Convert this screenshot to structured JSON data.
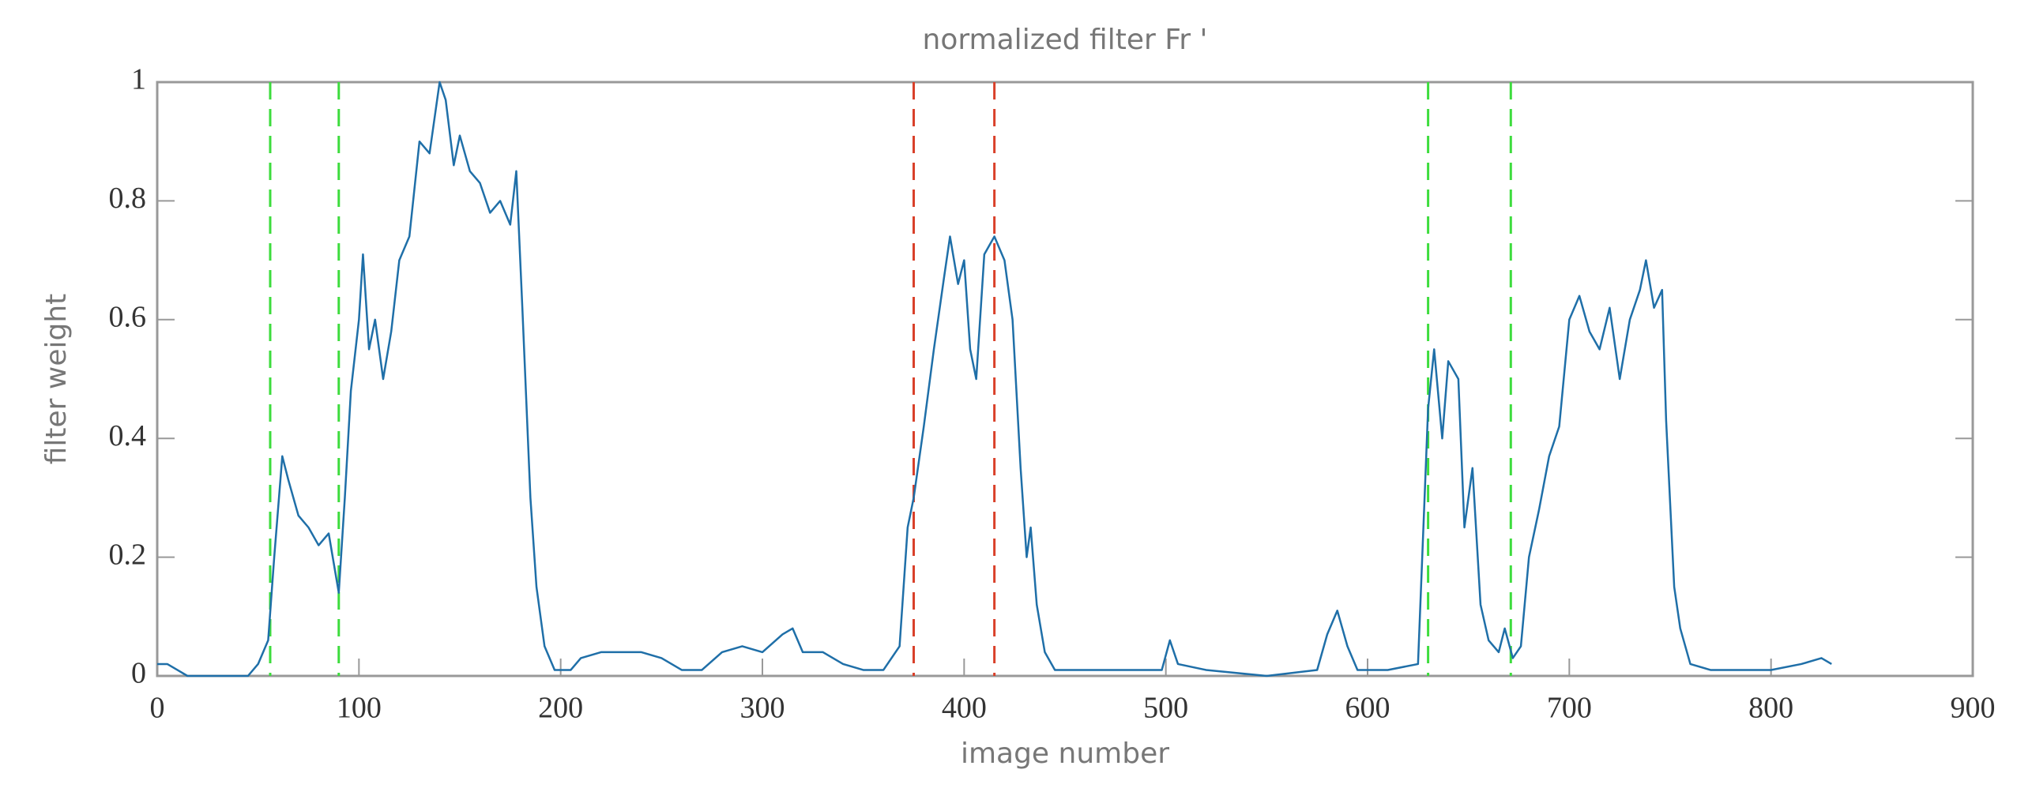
{
  "chart_data": {
    "type": "line",
    "title": "normalized filter Fr '",
    "xlabel": "image number",
    "ylabel": "filter weight",
    "xlim": [
      0,
      900
    ],
    "xticks": [
      0,
      100,
      200,
      300,
      400,
      500,
      600,
      700,
      800,
      900
    ],
    "ylim": [
      0,
      1
    ],
    "yticks": [
      0,
      0.2,
      0.4,
      0.6,
      0.8,
      1
    ],
    "grid": false,
    "vlines": [
      {
        "x": 56,
        "color": "#3ddc3d"
      },
      {
        "x": 90,
        "color": "#3ddc3d"
      },
      {
        "x": 375,
        "color": "#d9402a"
      },
      {
        "x": 415,
        "color": "#d9402a"
      },
      {
        "x": 630,
        "color": "#3ddc3d"
      },
      {
        "x": 671,
        "color": "#3ddc3d"
      }
    ],
    "series": [
      {
        "color": "#1f6fa8",
        "x": [
          0,
          5,
          10,
          15,
          20,
          45,
          50,
          55,
          58,
          62,
          65,
          70,
          75,
          80,
          85,
          88,
          90,
          93,
          96,
          100,
          102,
          105,
          108,
          112,
          116,
          120,
          125,
          130,
          135,
          140,
          143,
          147,
          150,
          155,
          160,
          165,
          170,
          175,
          178,
          181,
          185,
          188,
          192,
          197,
          205,
          210,
          220,
          230,
          240,
          250,
          260,
          270,
          280,
          290,
          300,
          310,
          315,
          320,
          330,
          340,
          350,
          360,
          368,
          372,
          375,
          380,
          385,
          390,
          393,
          397,
          400,
          403,
          406,
          410,
          415,
          420,
          424,
          428,
          431,
          433,
          436,
          440,
          445,
          455,
          470,
          490,
          498,
          502,
          506,
          520,
          550,
          575,
          580,
          585,
          590,
          595,
          610,
          625,
          630,
          633,
          637,
          640,
          645,
          648,
          652,
          656,
          660,
          665,
          668,
          672,
          676,
          680,
          685,
          690,
          695,
          700,
          705,
          710,
          715,
          720,
          725,
          730,
          735,
          738,
          742,
          746,
          748,
          752,
          755,
          760,
          770,
          780,
          800,
          815,
          825,
          830
        ],
        "values": [
          0.02,
          0.02,
          0.01,
          0,
          0,
          0,
          0.02,
          0.06,
          0.2,
          0.37,
          0.33,
          0.27,
          0.25,
          0.22,
          0.24,
          0.18,
          0.14,
          0.3,
          0.48,
          0.6,
          0.71,
          0.55,
          0.6,
          0.5,
          0.58,
          0.7,
          0.74,
          0.9,
          0.88,
          1,
          0.97,
          0.86,
          0.91,
          0.85,
          0.83,
          0.78,
          0.8,
          0.76,
          0.85,
          0.62,
          0.3,
          0.15,
          0.05,
          0.01,
          0.01,
          0.03,
          0.04,
          0.04,
          0.04,
          0.03,
          0.01,
          0.01,
          0.04,
          0.05,
          0.04,
          0.07,
          0.08,
          0.04,
          0.04,
          0.02,
          0.01,
          0.01,
          0.05,
          0.25,
          0.3,
          0.42,
          0.55,
          0.67,
          0.74,
          0.66,
          0.7,
          0.55,
          0.5,
          0.71,
          0.74,
          0.7,
          0.6,
          0.35,
          0.2,
          0.25,
          0.12,
          0.04,
          0.01,
          0.01,
          0.01,
          0.01,
          0.01,
          0.06,
          0.02,
          0.01,
          0,
          0.01,
          0.07,
          0.11,
          0.05,
          0.01,
          0.01,
          0.02,
          0.45,
          0.55,
          0.4,
          0.53,
          0.5,
          0.25,
          0.35,
          0.12,
          0.06,
          0.04,
          0.08,
          0.03,
          0.05,
          0.2,
          0.28,
          0.37,
          0.42,
          0.6,
          0.64,
          0.58,
          0.55,
          0.62,
          0.5,
          0.6,
          0.65,
          0.7,
          0.62,
          0.65,
          0.43,
          0.15,
          0.08,
          0.02,
          0.01,
          0.01,
          0.01,
          0.02,
          0.03,
          0.02
        ]
      }
    ]
  }
}
